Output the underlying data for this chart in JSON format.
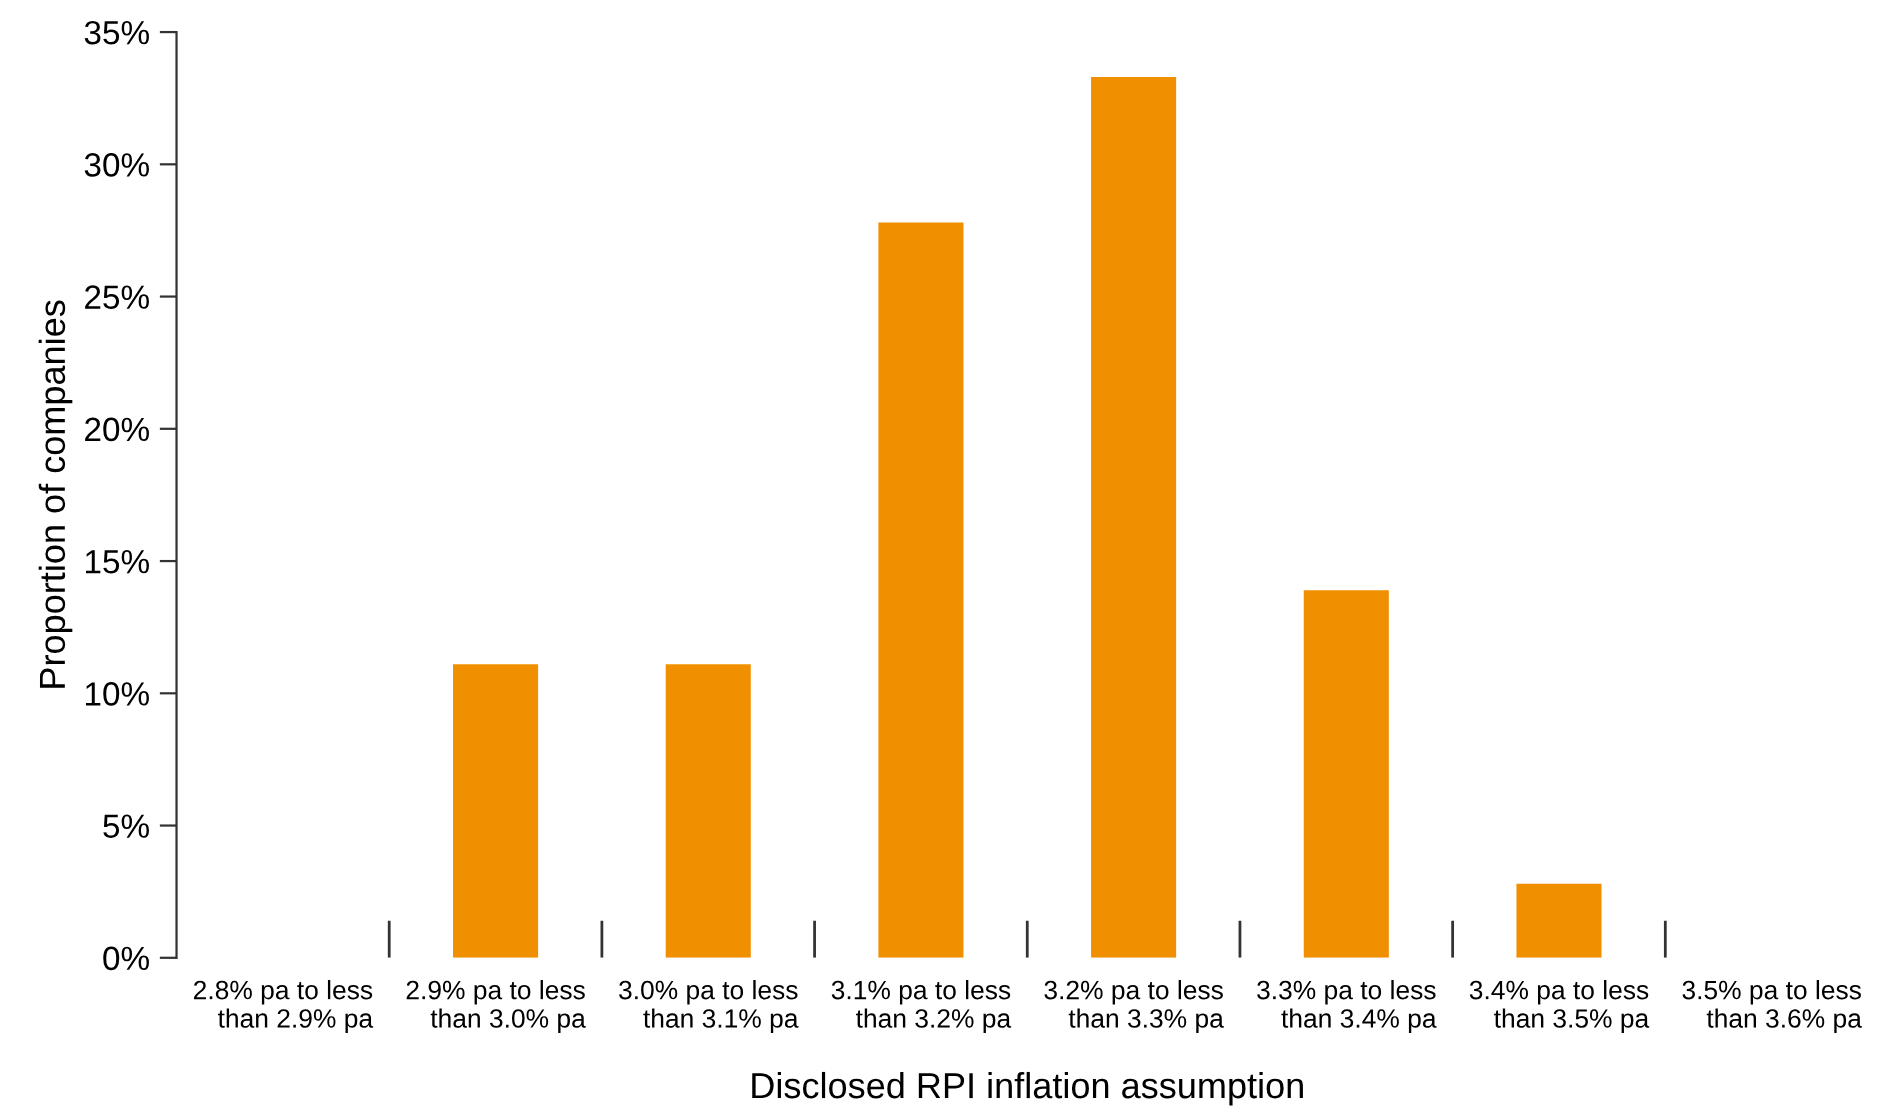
{
  "chart_data": {
    "type": "bar",
    "xlabel": "Disclosed RPI inflation assumption",
    "ylabel": "Proportion of companies",
    "categories": [
      "2.8% pa to less\nthan 2.9% pa",
      "2.9% pa to less\nthan 3.0% pa",
      "3.0% pa to less\nthan 3.1% pa",
      "3.1% pa to less\nthan 3.2% pa",
      "3.2% pa to less\nthan 3.3% pa",
      "3.3% pa to less\nthan 3.4% pa",
      "3.4% pa to less\nthan 3.5% pa",
      "3.5% pa to less\nthan 3.6% pa"
    ],
    "values": [
      0,
      11.1,
      11.1,
      27.8,
      33.3,
      13.9,
      2.8,
      0
    ],
    "color": "#f09000",
    "ylim": [
      0,
      35
    ],
    "yticks": [
      {
        "value": 0,
        "label": "0%"
      },
      {
        "value": 5,
        "label": "5%"
      },
      {
        "value": 10,
        "label": "10%"
      },
      {
        "value": 15,
        "label": "15%"
      },
      {
        "value": 20,
        "label": "20%"
      },
      {
        "value": 25,
        "label": "25%"
      },
      {
        "value": 30,
        "label": "30%"
      },
      {
        "value": 35,
        "label": "35%"
      }
    ],
    "grid": false,
    "legend": false
  }
}
